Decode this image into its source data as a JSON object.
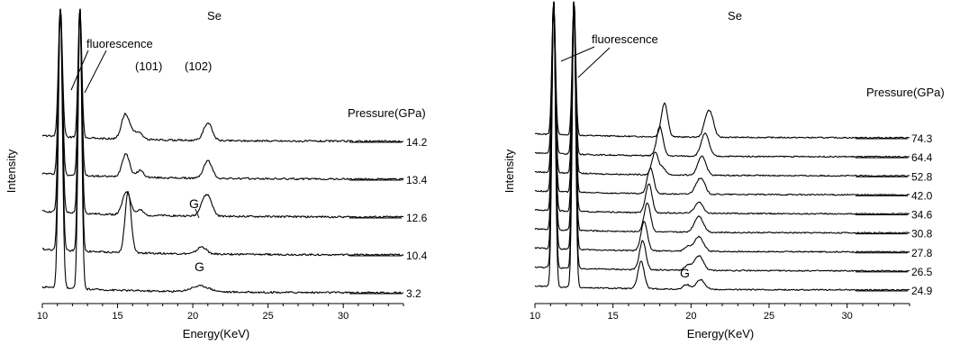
{
  "chart_data": [
    {
      "type": "line",
      "title": "Se",
      "xlabel": "Energy(KeV)",
      "ylabel": "Intensity",
      "xlim": [
        10,
        34
      ],
      "x_ticks": [
        10,
        15,
        20,
        25,
        30
      ],
      "legend_title": "Pressure(GPa)",
      "grid": false,
      "fluorescence_peaks": [
        11.2,
        12.5
      ],
      "annotations": {
        "fluorescence": "fluorescence",
        "peak_101": "(101)",
        "peak_102": "(102)",
        "gasket_upper": "G",
        "gasket_lower": "G"
      },
      "series": [
        {
          "name": "14.2",
          "peaks": [
            [
              15.5,
              1.0,
              0.25
            ],
            [
              16.0,
              0.3,
              0.3
            ],
            [
              16.5,
              0.2,
              0.2
            ],
            [
              21.0,
              0.75,
              0.28
            ]
          ]
        },
        {
          "name": "13.4",
          "peaks": [
            [
              15.55,
              1.0,
              0.25
            ],
            [
              16.5,
              0.3,
              0.22
            ],
            [
              21.0,
              0.75,
              0.28
            ]
          ]
        },
        {
          "name": "12.6",
          "peaks": [
            [
              15.6,
              1.0,
              0.26
            ],
            [
              16.5,
              0.22,
              0.2
            ],
            [
              20.6,
              0.3,
              0.22
            ],
            [
              21.0,
              0.85,
              0.28
            ]
          ]
        },
        {
          "name": "10.4",
          "peaks": [
            [
              15.7,
              2.6,
              0.2
            ],
            [
              20.6,
              0.3,
              0.3
            ]
          ]
        },
        {
          "name": "3.2",
          "peaks": [
            [
              20.5,
              0.25,
              0.6
            ]
          ]
        }
      ]
    },
    {
      "type": "line",
      "title": "Se",
      "xlabel": "Energy(KeV)",
      "ylabel": "Intensity",
      "xlim": [
        10,
        34
      ],
      "x_ticks": [
        10,
        15,
        20,
        25,
        30
      ],
      "legend_title": "Pressure(GPa)",
      "grid": false,
      "fluorescence_peaks": [
        11.2,
        12.5
      ],
      "annotations": {
        "fluorescence": "fluorescence",
        "gasket": "G"
      },
      "series": [
        {
          "name": "74.3",
          "peaks": [
            [
              18.3,
              2.1,
              0.2
            ],
            [
              21.0,
              1.1,
              0.2
            ],
            [
              21.3,
              1.1,
              0.2
            ]
          ]
        },
        {
          "name": "64.4",
          "peaks": [
            [
              18.0,
              1.8,
              0.2
            ],
            [
              20.9,
              1.4,
              0.25
            ]
          ]
        },
        {
          "name": "52.8",
          "peaks": [
            [
              17.7,
              1.4,
              0.2
            ],
            [
              18.2,
              0.4,
              0.2
            ],
            [
              20.7,
              1.2,
              0.25
            ]
          ]
        },
        {
          "name": "42.0",
          "peaks": [
            [
              17.4,
              1.6,
              0.2
            ],
            [
              20.5,
              0.8,
              0.25
            ],
            [
              20.8,
              0.4,
              0.2
            ]
          ]
        },
        {
          "name": "34.6",
          "peaks": [
            [
              17.3,
              1.8,
              0.2
            ],
            [
              20.5,
              0.7,
              0.25
            ]
          ]
        },
        {
          "name": "30.8",
          "peaks": [
            [
              17.2,
              1.8,
              0.2
            ],
            [
              20.5,
              1.0,
              0.28
            ]
          ]
        },
        {
          "name": "27.8",
          "peaks": [
            [
              17.0,
              1.8,
              0.2
            ],
            [
              19.8,
              0.3,
              0.2
            ],
            [
              20.5,
              0.9,
              0.28
            ]
          ]
        },
        {
          "name": "26.5",
          "peaks": [
            [
              16.9,
              1.8,
              0.2
            ],
            [
              19.8,
              0.3,
              0.2
            ],
            [
              20.5,
              0.9,
              0.28
            ]
          ]
        },
        {
          "name": "24.9",
          "peaks": [
            [
              16.8,
              1.7,
              0.2
            ],
            [
              19.7,
              0.3,
              0.2
            ],
            [
              20.6,
              0.6,
              0.28
            ]
          ]
        }
      ]
    }
  ]
}
